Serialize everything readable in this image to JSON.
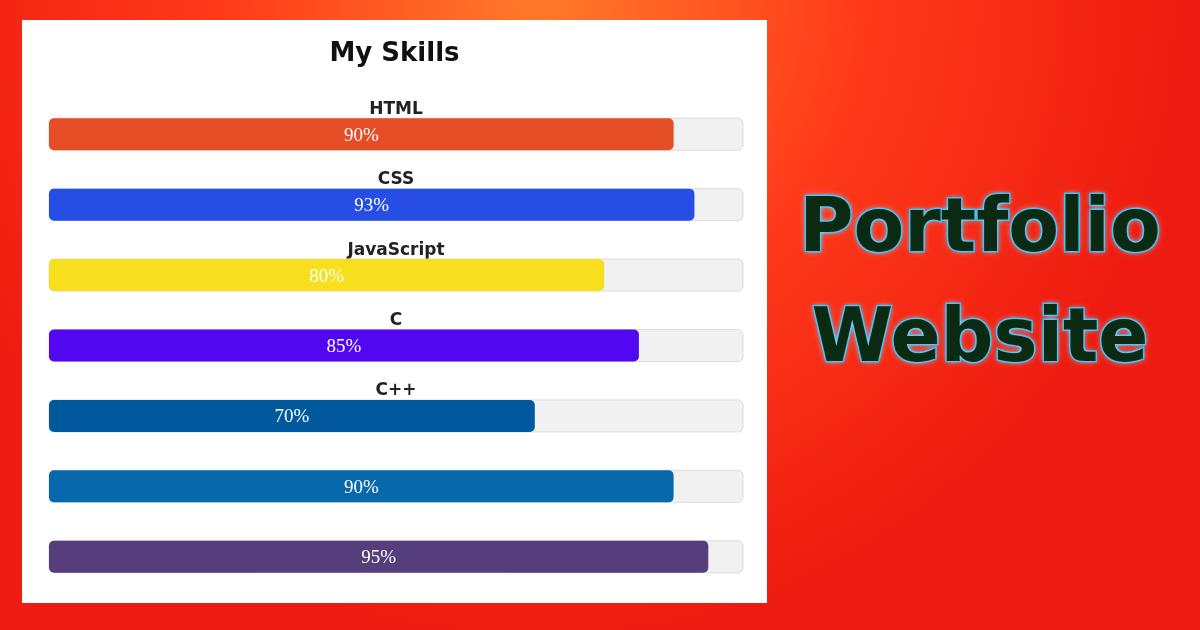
{
  "chart_data": {
    "type": "bar",
    "orientation": "horizontal",
    "title": "My Skills",
    "categories": [
      "HTML",
      "CSS",
      "JavaScript",
      "C",
      "C++",
      null,
      null
    ],
    "values": [
      90,
      93,
      80,
      85,
      70,
      90,
      95
    ],
    "colors": [
      "#e44d26",
      "#264de4",
      "#f7df1e",
      "#5108f0",
      "#00599c",
      "#0868ac",
      "#563d7c"
    ],
    "value_labels": [
      "90%",
      "93%",
      "80%",
      "85%",
      "70%",
      "90%",
      "95%"
    ],
    "xlim": [
      0,
      100
    ],
    "tick_labels": "y",
    "annotations": [
      "Portfolio Website"
    ]
  }
}
